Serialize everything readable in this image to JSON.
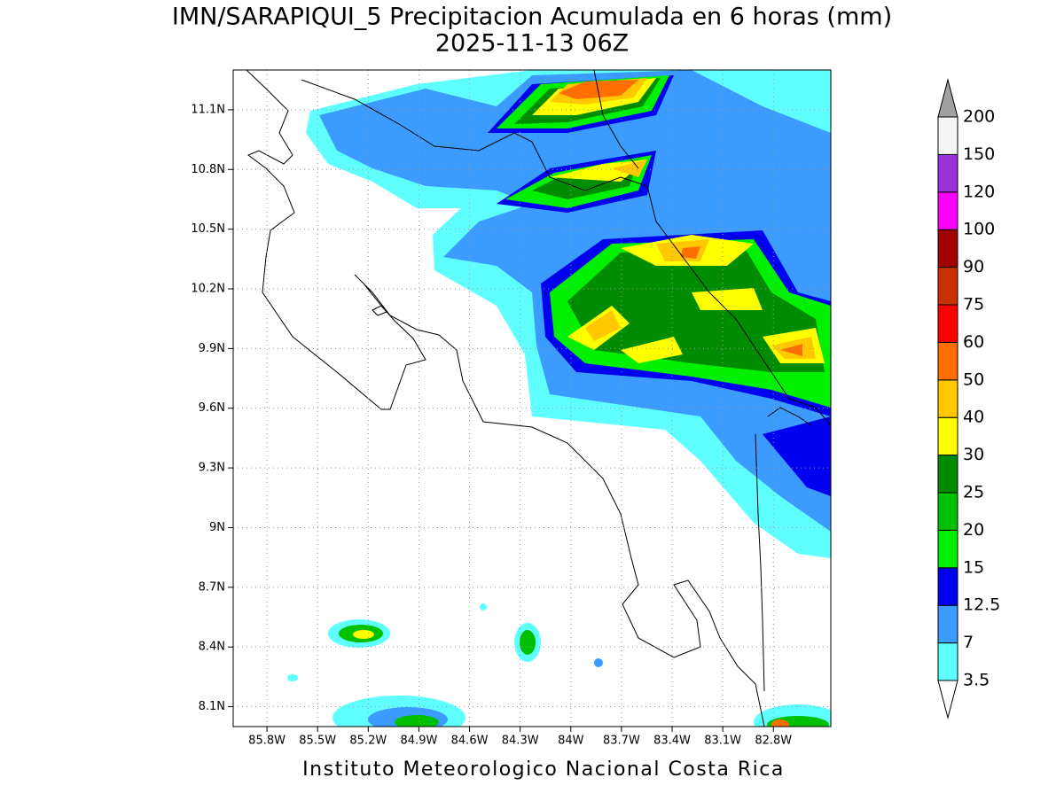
{
  "title": "IMN/SARAPIQUI_5 Precipitacion Acumulada en 6 horas (mm)",
  "subtitle": "2025-11-13 06Z",
  "map": {
    "lonlim": [
      -86.0,
      -82.46
    ],
    "latlim": [
      8.0,
      11.3
    ],
    "lon_ticks": [
      {
        "value": -85.8,
        "label": "85.8W"
      },
      {
        "value": -85.5,
        "label": "85.5W"
      },
      {
        "value": -85.2,
        "label": "85.2W"
      },
      {
        "value": -84.9,
        "label": "84.9W"
      },
      {
        "value": -84.6,
        "label": "84.6W"
      },
      {
        "value": -84.3,
        "label": "84.3W"
      },
      {
        "value": -84.0,
        "label": "84W"
      },
      {
        "value": -83.7,
        "label": "83.7W"
      },
      {
        "value": -83.4,
        "label": "83.4W"
      },
      {
        "value": -83.1,
        "label": "83.1W"
      },
      {
        "value": -82.8,
        "label": "82.8W"
      }
    ],
    "lat_ticks": [
      {
        "value": 8.1,
        "label": "8.1N"
      },
      {
        "value": 8.4,
        "label": "8.4N"
      },
      {
        "value": 8.7,
        "label": "8.7N"
      },
      {
        "value": 9.0,
        "label": "9N"
      },
      {
        "value": 9.3,
        "label": "9.3N"
      },
      {
        "value": 9.6,
        "label": "9.6N"
      },
      {
        "value": 9.9,
        "label": "9.9N"
      },
      {
        "value": 10.2,
        "label": "10.2N"
      },
      {
        "value": 10.5,
        "label": "10.5N"
      },
      {
        "value": 10.8,
        "label": "10.8N"
      },
      {
        "value": 11.1,
        "label": "11.1N"
      }
    ],
    "grid": true
  },
  "colorbar": {
    "levels": [
      3.5,
      7,
      12.5,
      15,
      20,
      25,
      30,
      40,
      50,
      60,
      75,
      90,
      100,
      120,
      150,
      200
    ],
    "colors": [
      "#ffffff",
      "#60ffff",
      "#3c9bff",
      "#0000f0",
      "#00f000",
      "#00c000",
      "#008c00",
      "#ffff00",
      "#ffc800",
      "#ff6e00",
      "#ff0000",
      "#c83200",
      "#a00000",
      "#ff00ff",
      "#9b30d8",
      "#f5f5f5",
      "#a0a0a0"
    ]
  },
  "footer": "Instituto Meteorologico Nacional Costa Rica"
}
